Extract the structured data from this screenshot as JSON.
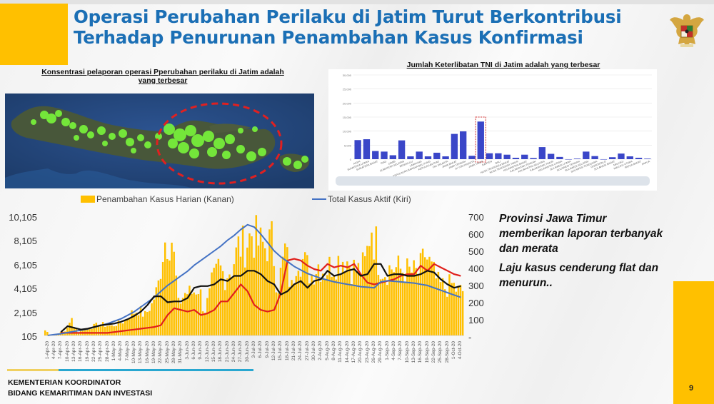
{
  "slide": {
    "title_line1": "Operasi Perubahan Perilaku di Jatim Turut Berkontribusi",
    "title_line2": "Terhadap Penurunan Penambahan Kasus Konfirmasi",
    "page_number": "9",
    "footer_line1": "KEMENTERIAN KOORDINATOR",
    "footer_line2": "BIDANG KEMARITIMAN DAN INVESTASI",
    "logo": "garuda-pancasila-emblem"
  },
  "map_section": {
    "heading_line1": "Konsentrasi pelaporan operasi Pperubahan perilaku di Jatim adalah",
    "heading_line2": "yang terbesar",
    "highlight": "red dashed ellipse over East Java",
    "colors": {
      "sea": "#25477a",
      "land": "#4a5a3c",
      "points": "#7cff3a",
      "highlight": "#e02020"
    }
  },
  "bar_section": {
    "heading": "Jumlah Keterlibatan TNI di Jatim adalah yang terbesar"
  },
  "notes": {
    "p1": "Provinsi Jawa Timur memberikan laporan terbanyak dan merata",
    "p2": "Laju kasus cenderung flat dan menurun.."
  },
  "legend": {
    "bar": "Penambahan Kasus Harian (Kanan)",
    "line": "Total Kasus Aktif (Kiri)"
  },
  "axes": {
    "left": [
      "10,105",
      "8,105",
      "6,105",
      "4,105",
      "2,105",
      "105"
    ],
    "right": [
      "700",
      "600",
      "500",
      "400",
      "300",
      "200",
      "100",
      "-"
    ]
  },
  "x_labels": [
    "1-Apr-20",
    "4-Apr-20",
    "7-Apr-20",
    "10-Apr-20",
    "13-Apr-20",
    "16-Apr-20",
    "19-Apr-20",
    "22-Apr-20",
    "25-Apr-20",
    "28-Apr-20",
    "1-May-20",
    "4-May-20",
    "7-May-20",
    "10-May-20",
    "13-May-20",
    "16-May-20",
    "19-May-20",
    "22-May-20",
    "25-May-20",
    "28-May-20",
    "31-May-20",
    "3-Jun-20",
    "6-Jun-20",
    "9-Jun-20",
    "12-Jun-20",
    "15-Jun-20",
    "18-Jun-20",
    "21-Jun-20",
    "24-Jun-20",
    "27-Jun-20",
    "30-Jun-20",
    "3-Jul-20",
    "6-Jul-20",
    "9-Jul-20",
    "12-Jul-20",
    "15-Jul-20",
    "18-Jul-20",
    "21-Jul-20",
    "24-Jul-20",
    "27-Jul-20",
    "30-Jul-20",
    "2-Aug-20",
    "5-Aug-20",
    "8-Aug-20",
    "11-Aug-20",
    "14-Aug-20",
    "17-Aug-20",
    "20-Aug-20",
    "23-Aug-20",
    "26-Aug-20",
    "29-Aug-20",
    "1-Sep-20",
    "4-Sep-20",
    "7-Sep-20",
    "10-Sep-20",
    "13-Sep-20",
    "16-Sep-20",
    "19-Sep-20",
    "22-Sep-20",
    "25-Sep-20",
    "28-Sep-20",
    "1-Oct-20",
    "4-Oct-20"
  ],
  "chart_data": [
    {
      "type": "bar",
      "title": "Jumlah Keterlibatan TNI di Jatim adalah yang terbesar",
      "categories": [
        "ACEH",
        "SUMATERA UTARA",
        "SUMATERA BARAT",
        "RIAU",
        "JAMBI",
        "SUMATERA SELATAN",
        "BENGKULU",
        "LAMPUNG",
        "KEPULAUAN BANGKA BELITUNG",
        "KEPULAUAN RIAU",
        "DKI JAKARTA",
        "JAWA BARAT",
        "JAWA TENGAH",
        "DI YOGYAKARTA",
        "JAWA TIMUR",
        "BANTEN",
        "BALI",
        "NUSA TENGGARA BARAT",
        "NUSA TENGGARA TIMUR",
        "KALIMANTAN BARAT",
        "KALIMANTAN TENGAH",
        "KALIMANTAN SELATAN",
        "KALIMANTAN TIMUR",
        "KALIMANTAN UTARA",
        "SULAWESI UTARA",
        "SULAWESI TENGAH",
        "SULAWESI SELATAN",
        "SULAWESI TENGGARA",
        "GORONTALO",
        "SULAWESI BARAT",
        "MALUKU",
        "MALUKU UTARA",
        "PAPUA BARAT",
        "PAPUA"
      ],
      "values": [
        6800,
        7100,
        2900,
        2700,
        1400,
        6700,
        1000,
        2700,
        1000,
        2300,
        1000,
        9000,
        9900,
        1200,
        13400,
        2100,
        2100,
        1600,
        500,
        1600,
        400,
        4300,
        1900,
        800,
        0,
        200,
        2700,
        1100,
        0,
        700,
        2000,
        1000,
        500,
        200
      ],
      "highlight": "JAWA TIMUR",
      "ylabel": "",
      "ylim": [
        0,
        30000
      ],
      "yticks": [
        "0",
        "5,000",
        "10,000",
        "15,000",
        "20,000",
        "25,000",
        "30,000"
      ],
      "bar_color": "#3a46c8",
      "grid": true
    },
    {
      "type": "bar+line",
      "title": "",
      "legend": [
        "Penambahan Kasus Harian (Kanan)",
        "Total Kasus Aktif (Kiri)"
      ],
      "left_axis": {
        "label": "Total Kasus Aktif (Kiri)",
        "ylim": [
          105,
          10105
        ],
        "ticks": [
          105,
          2105,
          4105,
          6105,
          8105,
          10105
        ]
      },
      "right_axis": {
        "label": "Penambahan Kasus Harian (Kanan)",
        "ylim": [
          0,
          700
        ],
        "ticks": [
          0,
          100,
          200,
          300,
          400,
          500,
          600,
          700
        ]
      },
      "x_range": [
        "1-Apr-20",
        "4-Oct-20"
      ],
      "series": [
        {
          "name": "Penambahan Kasus Harian (Kanan)",
          "type": "bar",
          "color": "#ffc000",
          "values_sampled_every_3_days": [
            30,
            0,
            15,
            25,
            95,
            20,
            40,
            50,
            70,
            60,
            55,
            70,
            85,
            130,
            150,
            120,
            180,
            300,
            560,
            570,
            180,
            250,
            250,
            280,
            150,
            300,
            400,
            350,
            400,
            520,
            530,
            600,
            540,
            520,
            560,
            300,
            500,
            280,
            480,
            420,
            360,
            420,
            380,
            420,
            440,
            460,
            400,
            380,
            420,
            650,
            450,
            380,
            400,
            390,
            380,
            370,
            360,
            480,
            380,
            300,
            280,
            300,
            260
          ]
        },
        {
          "name": "Total Kasus Aktif (Kiri)",
          "type": "line",
          "color": "#4472c4",
          "values_sampled_every_3_days": [
            105,
            180,
            250,
            350,
            450,
            550,
            650,
            800,
            950,
            1100,
            1300,
            1500,
            1800,
            2100,
            2500,
            2900,
            3300,
            3800,
            4300,
            4700,
            5100,
            5500,
            6000,
            6400,
            6800,
            7200,
            7600,
            8100,
            8500,
            9000,
            9400,
            9200,
            8600,
            7900,
            7200,
            6700,
            6300,
            5900,
            5600,
            5300,
            5100,
            4900,
            4750,
            4600,
            4500,
            4400,
            4300,
            4200,
            4150,
            4100,
            4600,
            4700,
            4650,
            4600,
            4550,
            4500,
            4400,
            4300,
            4100,
            3900,
            3700,
            3500,
            3300
          ]
        },
        {
          "name": "Rata-rata bergerak (hitam)",
          "type": "line",
          "color": "#111111",
          "values_sampled_every_3_days": [
            null,
            null,
            20,
            55,
            45,
            35,
            40,
            50,
            60,
            65,
            70,
            80,
            95,
            115,
            140,
            180,
            230,
            230,
            195,
            200,
            200,
            220,
            280,
            290,
            290,
            300,
            330,
            320,
            350,
            350,
            380,
            380,
            360,
            320,
            300,
            240,
            260,
            300,
            320,
            280,
            320,
            330,
            380,
            350,
            360,
            380,
            390,
            350,
            360,
            420,
            420,
            350,
            360,
            360,
            350,
            350,
            360,
            380,
            370,
            330,
            300,
            280,
            290
          ]
        },
        {
          "name": "Rata-rata bergerak (merah)",
          "type": "line",
          "color": "#e0201c",
          "values_sampled_every_3_days": [
            null,
            null,
            15,
            15,
            15,
            15,
            15,
            15,
            15,
            15,
            20,
            25,
            30,
            35,
            40,
            45,
            50,
            60,
            120,
            160,
            150,
            140,
            150,
            120,
            130,
            150,
            200,
            200,
            250,
            300,
            260,
            180,
            150,
            140,
            150,
            250,
            440,
            450,
            440,
            410,
            390,
            380,
            420,
            400,
            410,
            400,
            420,
            360,
            310,
            300,
            310,
            320,
            330,
            350,
            360,
            360,
            410,
            380,
            420,
            400,
            380,
            360,
            350
          ]
        }
      ]
    }
  ]
}
